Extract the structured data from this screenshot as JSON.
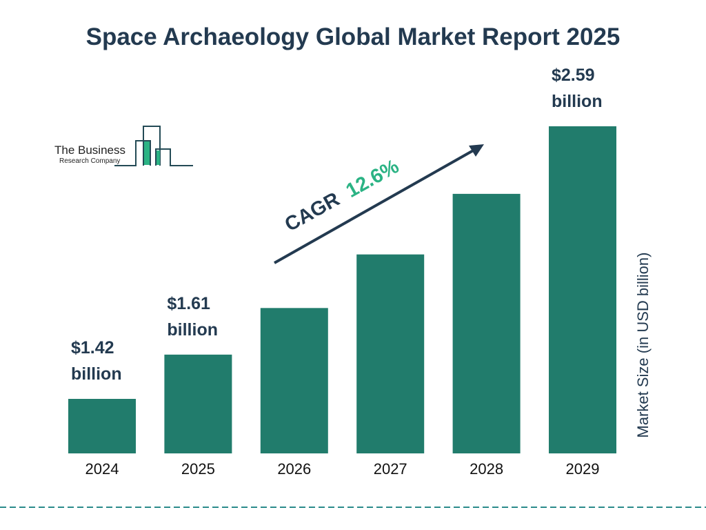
{
  "title": "Space Archaeology Global Market Report 2025",
  "logo": {
    "line1": "The Business",
    "line2": "Research Company"
  },
  "cagr": {
    "label": "CAGR",
    "value": "12.6%"
  },
  "colors": {
    "bar": "#217c6c",
    "title": "#233a50",
    "cagr": "#2bb384",
    "divider": "#2a8a8a"
  },
  "chart_data": {
    "type": "bar",
    "title": "Space Archaeology Global Market Report 2025",
    "categories": [
      "2024",
      "2025",
      "2026",
      "2027",
      "2028",
      "2029"
    ],
    "values": [
      1.42,
      1.61,
      1.81,
      2.04,
      2.3,
      2.59
    ],
    "data_labels": [
      {
        "line1": "$1.42",
        "line2": "billion"
      },
      {
        "line1": "$1.61",
        "line2": "billion"
      },
      null,
      null,
      null,
      {
        "line1": "$2.59",
        "line2": "billion"
      }
    ],
    "ylabel": "Market Size (in USD billion)",
    "xlabel": "",
    "grid": false
  }
}
